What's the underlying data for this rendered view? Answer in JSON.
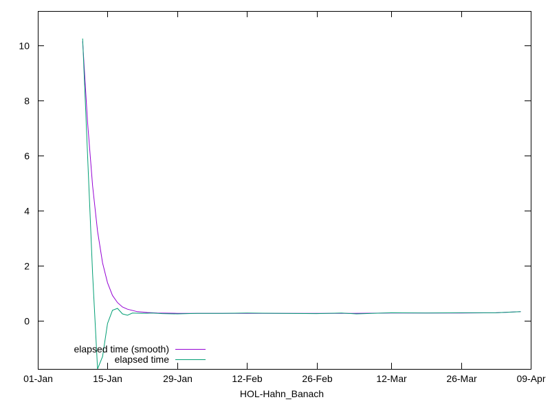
{
  "chart_data": {
    "type": "line",
    "title": "",
    "xlabel": "HOL-Hahn_Banach",
    "ylabel": "",
    "grid": false,
    "legend_position": "bottom-left",
    "x_tick_labels": [
      "01-Jan",
      "15-Jan",
      "29-Jan",
      "12-Feb",
      "26-Feb",
      "12-Mar",
      "26-Mar",
      "09-Apr"
    ],
    "x_ticks": [
      "2024-01-01",
      "2024-01-15",
      "2024-01-29",
      "2024-02-12",
      "2024-02-26",
      "2024-03-12",
      "2024-03-26",
      "2024-04-09"
    ],
    "xlim": [
      "2024-01-01",
      "2024-04-09"
    ],
    "y_ticks": [
      0,
      2,
      4,
      6,
      8,
      10
    ],
    "y_tick_labels": [
      "0",
      "2",
      "4",
      "6",
      "8",
      "10"
    ],
    "ylim": [
      -1.75,
      11.25
    ],
    "series": [
      {
        "name": "elapsed time (smooth)",
        "color": "#9400d3",
        "x": [
          "2024-01-10",
          "2024-01-11",
          "2024-01-12",
          "2024-01-13",
          "2024-01-14",
          "2024-01-15",
          "2024-01-16",
          "2024-01-17",
          "2024-01-18",
          "2024-01-19",
          "2024-01-21",
          "2024-01-23",
          "2024-01-25",
          "2024-01-29",
          "2024-02-05",
          "2024-02-12",
          "2024-02-19",
          "2024-02-26",
          "2024-03-04",
          "2024-03-12",
          "2024-03-19",
          "2024-03-26",
          "2024-04-02",
          "2024-04-07"
        ],
        "values": [
          10.15,
          7.2,
          4.9,
          3.25,
          2.1,
          1.38,
          0.92,
          0.66,
          0.5,
          0.42,
          0.33,
          0.3,
          0.28,
          0.27,
          0.27,
          0.27,
          0.27,
          0.27,
          0.27,
          0.28,
          0.28,
          0.28,
          0.29,
          0.33
        ]
      },
      {
        "name": "elapsed time",
        "color": "#009e73",
        "x": [
          "2024-01-10",
          "2024-01-11",
          "2024-01-12",
          "2024-01-13",
          "2024-01-14",
          "2024-01-15",
          "2024-01-16",
          "2024-01-17",
          "2024-01-18",
          "2024-01-19",
          "2024-01-20",
          "2024-01-22",
          "2024-01-24",
          "2024-01-26",
          "2024-01-29",
          "2024-02-02",
          "2024-02-07",
          "2024-02-12",
          "2024-02-19",
          "2024-02-26",
          "2024-03-02",
          "2024-03-05",
          "2024-03-12",
          "2024-03-19",
          "2024-03-26",
          "2024-04-02",
          "2024-04-07"
        ],
        "values": [
          10.25,
          6.0,
          1.7,
          -1.75,
          -1.3,
          -0.1,
          0.38,
          0.45,
          0.25,
          0.2,
          0.28,
          0.27,
          0.28,
          0.26,
          0.25,
          0.27,
          0.27,
          0.28,
          0.27,
          0.26,
          0.28,
          0.25,
          0.29,
          0.28,
          0.29,
          0.29,
          0.33
        ]
      }
    ]
  }
}
